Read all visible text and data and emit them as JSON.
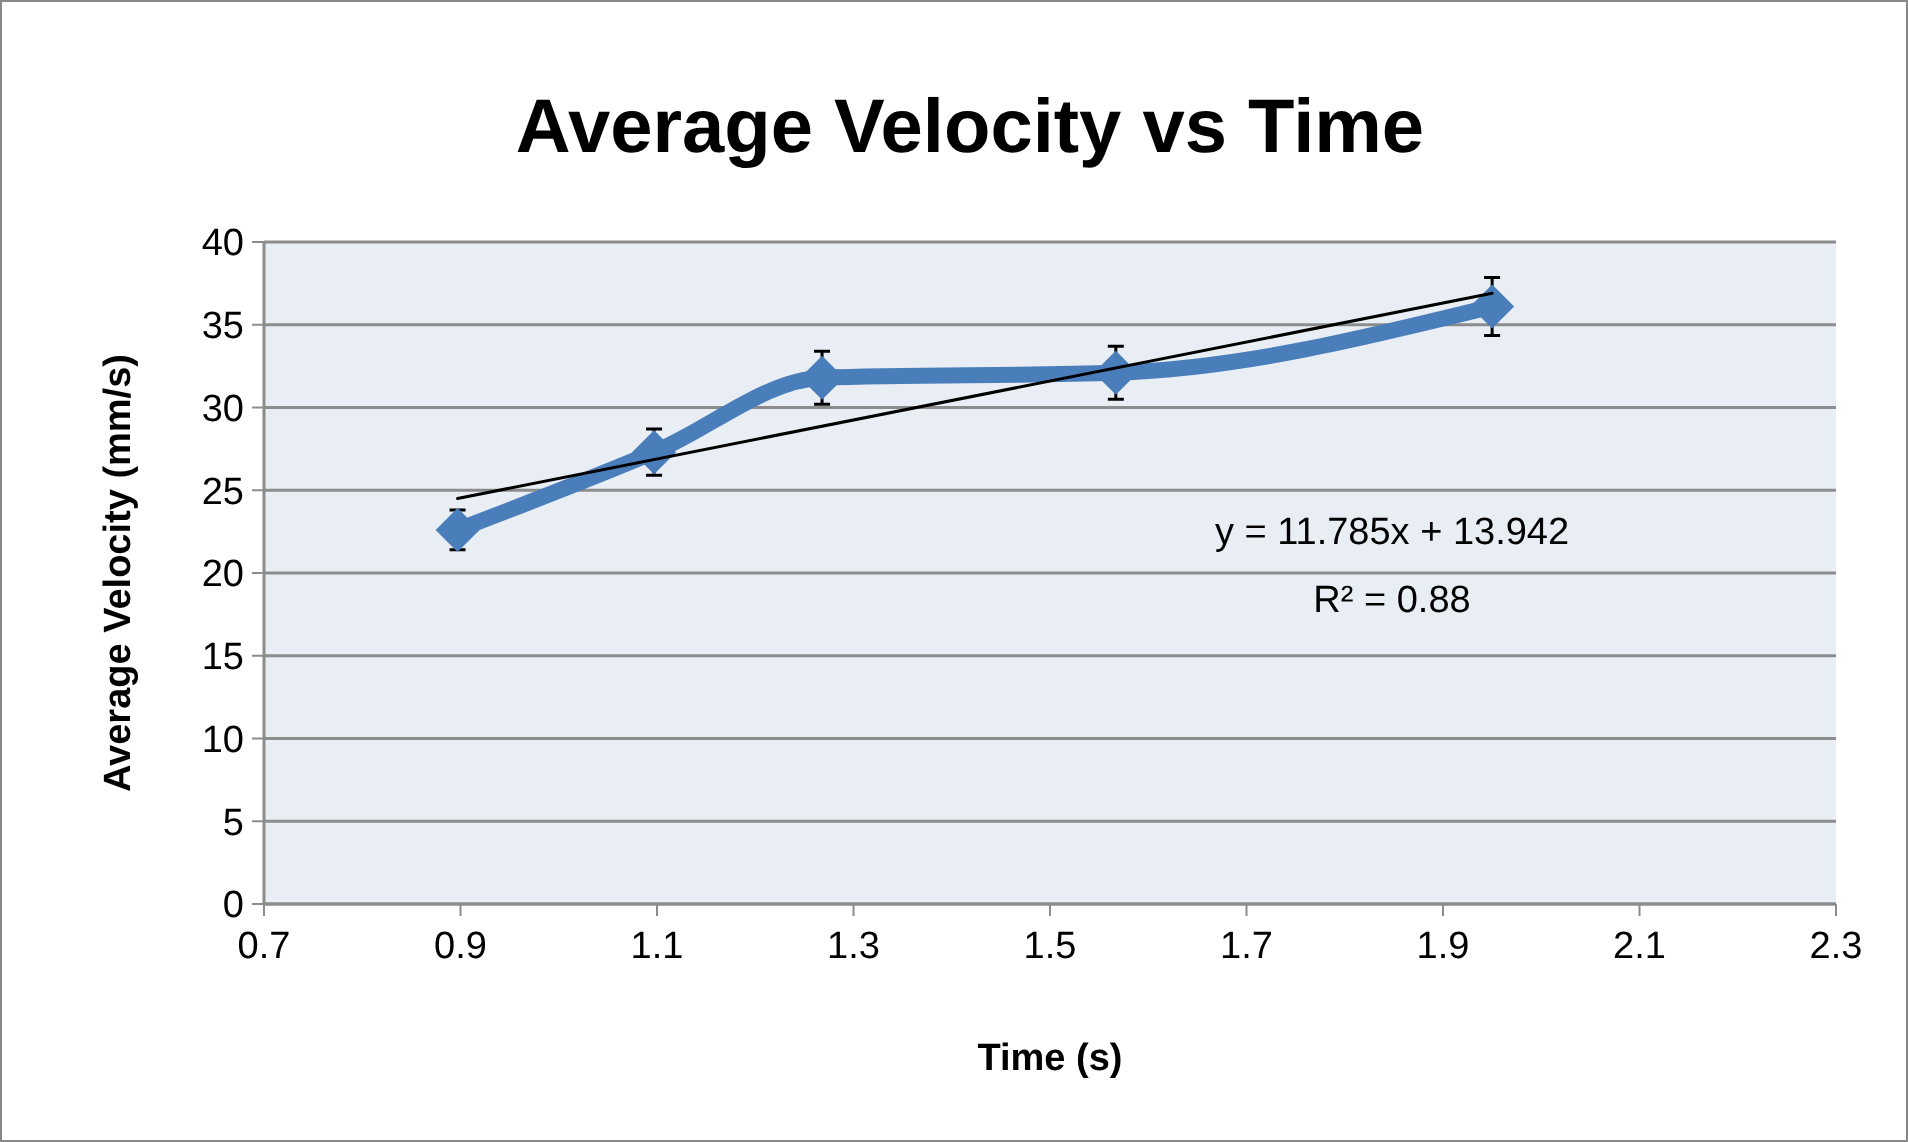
{
  "chart_data": {
    "type": "line",
    "title": "Average Velocity vs Time",
    "xlabel": "Time  (s)",
    "ylabel": "Average Velocity (mm/s)",
    "xlim": [
      0.7,
      2.3
    ],
    "xticks": [
      0.7,
      0.9,
      1.1,
      1.3,
      1.5,
      1.7,
      1.9,
      2.1,
      2.3
    ],
    "ylim": [
      0,
      40
    ],
    "yticks": [
      0,
      5,
      10,
      15,
      20,
      25,
      30,
      35,
      40
    ],
    "grid": "y",
    "marker": "diamond",
    "series": [
      {
        "color": "#4a7ebb",
        "x": [
          0.897,
          1.097,
          1.268,
          1.567,
          1.95
        ],
        "values": [
          22.6,
          27.3,
          31.8,
          32.1,
          36.1
        ],
        "errors": [
          1.2,
          1.4,
          1.6,
          1.6,
          1.75
        ]
      },
      {
        "color": "#000000",
        "x": [
          0.897,
          1.95
        ],
        "values": [
          24.5,
          36.9
        ],
        "marker": "none"
      }
    ],
    "annotations": [
      "y = 11.785x + 13.942",
      "R² = 0.88"
    ]
  }
}
